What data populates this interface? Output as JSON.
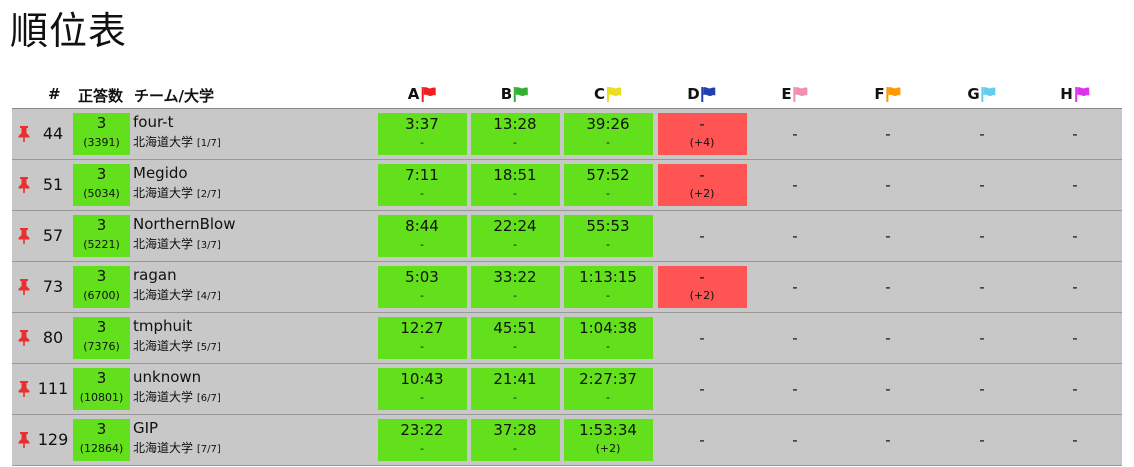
{
  "title": "順位表",
  "header": {
    "rank": "#",
    "solved": "正答数",
    "team": "チーム/大学"
  },
  "problems": [
    {
      "label": "A",
      "color": "#f02020"
    },
    {
      "label": "B",
      "color": "#33b033"
    },
    {
      "label": "C",
      "color": "#e8e020"
    },
    {
      "label": "D",
      "color": "#2040b0"
    },
    {
      "label": "E",
      "color": "#f090b0"
    },
    {
      "label": "F",
      "color": "#ff9900"
    },
    {
      "label": "G",
      "color": "#66ccf0"
    },
    {
      "label": "H",
      "color": "#dd33ee"
    }
  ],
  "status_colors": {
    "accepted": "#63e01c",
    "wrong": "#fe5454",
    "pin": "#e83030"
  },
  "rows": [
    {
      "rank": "44",
      "solved": "3",
      "penalty": "(3391)",
      "team": "four-t",
      "univ": "北海道大学",
      "univ_index": "[1/7]",
      "cells": [
        {
          "status": "ac",
          "time": "3:37",
          "sub": "-"
        },
        {
          "status": "ac",
          "time": "13:28",
          "sub": "-"
        },
        {
          "status": "ac",
          "time": "39:26",
          "sub": "-"
        },
        {
          "status": "wa",
          "time": "-",
          "sub": "(+4)"
        },
        {
          "status": "empty",
          "time": "-",
          "sub": ""
        },
        {
          "status": "empty",
          "time": "-",
          "sub": ""
        },
        {
          "status": "empty",
          "time": "-",
          "sub": ""
        },
        {
          "status": "empty",
          "time": "-",
          "sub": ""
        }
      ]
    },
    {
      "rank": "51",
      "solved": "3",
      "penalty": "(5034)",
      "team": "Megido",
      "univ": "北海道大学",
      "univ_index": "[2/7]",
      "cells": [
        {
          "status": "ac",
          "time": "7:11",
          "sub": "-"
        },
        {
          "status": "ac",
          "time": "18:51",
          "sub": "-"
        },
        {
          "status": "ac",
          "time": "57:52",
          "sub": "-"
        },
        {
          "status": "wa",
          "time": "-",
          "sub": "(+2)"
        },
        {
          "status": "empty",
          "time": "-",
          "sub": ""
        },
        {
          "status": "empty",
          "time": "-",
          "sub": ""
        },
        {
          "status": "empty",
          "time": "-",
          "sub": ""
        },
        {
          "status": "empty",
          "time": "-",
          "sub": ""
        }
      ]
    },
    {
      "rank": "57",
      "solved": "3",
      "penalty": "(5221)",
      "team": "NorthernBlow",
      "univ": "北海道大学",
      "univ_index": "[3/7]",
      "cells": [
        {
          "status": "ac",
          "time": "8:44",
          "sub": "-"
        },
        {
          "status": "ac",
          "time": "22:24",
          "sub": "-"
        },
        {
          "status": "ac",
          "time": "55:53",
          "sub": "-"
        },
        {
          "status": "empty",
          "time": "-",
          "sub": ""
        },
        {
          "status": "empty",
          "time": "-",
          "sub": ""
        },
        {
          "status": "empty",
          "time": "-",
          "sub": ""
        },
        {
          "status": "empty",
          "time": "-",
          "sub": ""
        },
        {
          "status": "empty",
          "time": "-",
          "sub": ""
        }
      ]
    },
    {
      "rank": "73",
      "solved": "3",
      "penalty": "(6700)",
      "team": "ragan",
      "univ": "北海道大学",
      "univ_index": "[4/7]",
      "cells": [
        {
          "status": "ac",
          "time": "5:03",
          "sub": "-"
        },
        {
          "status": "ac",
          "time": "33:22",
          "sub": "-"
        },
        {
          "status": "ac",
          "time": "1:13:15",
          "sub": "-"
        },
        {
          "status": "wa",
          "time": "-",
          "sub": "(+2)"
        },
        {
          "status": "empty",
          "time": "-",
          "sub": ""
        },
        {
          "status": "empty",
          "time": "-",
          "sub": ""
        },
        {
          "status": "empty",
          "time": "-",
          "sub": ""
        },
        {
          "status": "empty",
          "time": "-",
          "sub": ""
        }
      ]
    },
    {
      "rank": "80",
      "solved": "3",
      "penalty": "(7376)",
      "team": "tmphuit",
      "univ": "北海道大学",
      "univ_index": "[5/7]",
      "cells": [
        {
          "status": "ac",
          "time": "12:27",
          "sub": "-"
        },
        {
          "status": "ac",
          "time": "45:51",
          "sub": "-"
        },
        {
          "status": "ac",
          "time": "1:04:38",
          "sub": "-"
        },
        {
          "status": "empty",
          "time": "-",
          "sub": ""
        },
        {
          "status": "empty",
          "time": "-",
          "sub": ""
        },
        {
          "status": "empty",
          "time": "-",
          "sub": ""
        },
        {
          "status": "empty",
          "time": "-",
          "sub": ""
        },
        {
          "status": "empty",
          "time": "-",
          "sub": ""
        }
      ]
    },
    {
      "rank": "111",
      "solved": "3",
      "penalty": "(10801)",
      "team": "unknown",
      "univ": "北海道大学",
      "univ_index": "[6/7]",
      "cells": [
        {
          "status": "ac",
          "time": "10:43",
          "sub": "-"
        },
        {
          "status": "ac",
          "time": "21:41",
          "sub": "-"
        },
        {
          "status": "ac",
          "time": "2:27:37",
          "sub": "-"
        },
        {
          "status": "empty",
          "time": "-",
          "sub": ""
        },
        {
          "status": "empty",
          "time": "-",
          "sub": ""
        },
        {
          "status": "empty",
          "time": "-",
          "sub": ""
        },
        {
          "status": "empty",
          "time": "-",
          "sub": ""
        },
        {
          "status": "empty",
          "time": "-",
          "sub": ""
        }
      ]
    },
    {
      "rank": "129",
      "solved": "3",
      "penalty": "(12864)",
      "team": "GIP",
      "univ": "北海道大学",
      "univ_index": "[7/7]",
      "cells": [
        {
          "status": "ac",
          "time": "23:22",
          "sub": "-"
        },
        {
          "status": "ac",
          "time": "37:28",
          "sub": "-"
        },
        {
          "status": "ac",
          "time": "1:53:34",
          "sub": "(+2)"
        },
        {
          "status": "empty",
          "time": "-",
          "sub": ""
        },
        {
          "status": "empty",
          "time": "-",
          "sub": ""
        },
        {
          "status": "empty",
          "time": "-",
          "sub": ""
        },
        {
          "status": "empty",
          "time": "-",
          "sub": ""
        },
        {
          "status": "empty",
          "time": "-",
          "sub": ""
        }
      ]
    }
  ]
}
